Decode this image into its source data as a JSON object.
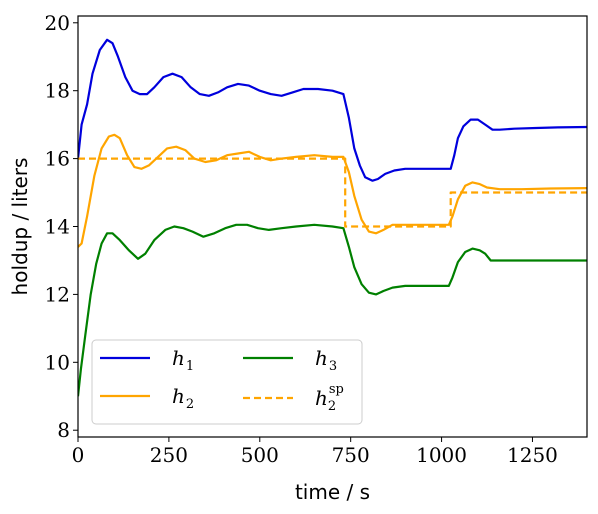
{
  "chart_data": {
    "type": "line",
    "title": "",
    "xlabel": "time / s",
    "ylabel": "holdup / liters",
    "xlim": [
      0,
      1400
    ],
    "ylim": [
      7.8,
      20.2
    ],
    "xticks": [
      0,
      250,
      500,
      750,
      1000,
      1250
    ],
    "yticks": [
      8,
      10,
      12,
      14,
      16,
      18,
      20
    ],
    "grid": false,
    "legend": {
      "placement": "bottom-left",
      "columns": 2,
      "entries": [
        {
          "base": "h",
          "sub": "1",
          "sup": ""
        },
        {
          "base": "h",
          "sub": "2",
          "sup": ""
        },
        {
          "base": "h",
          "sub": "3",
          "sup": ""
        },
        {
          "base": "h",
          "sub": "2",
          "sup": "sp"
        }
      ]
    },
    "series": [
      {
        "name": "h1",
        "color": "#0000dd",
        "style": "solid",
        "points": [
          [
            0,
            16.0
          ],
          [
            10,
            17.0
          ],
          [
            25,
            17.6
          ],
          [
            40,
            18.5
          ],
          [
            60,
            19.2
          ],
          [
            80,
            19.5
          ],
          [
            95,
            19.4
          ],
          [
            110,
            19.0
          ],
          [
            130,
            18.4
          ],
          [
            150,
            18.0
          ],
          [
            170,
            17.9
          ],
          [
            190,
            17.9
          ],
          [
            210,
            18.1
          ],
          [
            235,
            18.4
          ],
          [
            260,
            18.5
          ],
          [
            285,
            18.4
          ],
          [
            310,
            18.1
          ],
          [
            335,
            17.9
          ],
          [
            360,
            17.85
          ],
          [
            385,
            17.95
          ],
          [
            410,
            18.1
          ],
          [
            440,
            18.2
          ],
          [
            470,
            18.15
          ],
          [
            500,
            18.0
          ],
          [
            530,
            17.9
          ],
          [
            560,
            17.85
          ],
          [
            590,
            17.95
          ],
          [
            620,
            18.05
          ],
          [
            660,
            18.05
          ],
          [
            700,
            18.0
          ],
          [
            730,
            17.9
          ],
          [
            745,
            17.2
          ],
          [
            760,
            16.3
          ],
          [
            775,
            15.8
          ],
          [
            790,
            15.45
          ],
          [
            810,
            15.35
          ],
          [
            825,
            15.4
          ],
          [
            845,
            15.55
          ],
          [
            870,
            15.65
          ],
          [
            900,
            15.7
          ],
          [
            960,
            15.7
          ],
          [
            1025,
            15.7
          ],
          [
            1035,
            16.1
          ],
          [
            1045,
            16.6
          ],
          [
            1060,
            16.95
          ],
          [
            1080,
            17.15
          ],
          [
            1100,
            17.15
          ],
          [
            1120,
            17.0
          ],
          [
            1140,
            16.85
          ],
          [
            1160,
            16.85
          ],
          [
            1200,
            16.88
          ],
          [
            1260,
            16.9
          ],
          [
            1320,
            16.92
          ],
          [
            1400,
            16.93
          ]
        ]
      },
      {
        "name": "h2",
        "color": "#ffa500",
        "style": "solid",
        "points": [
          [
            0,
            13.4
          ],
          [
            10,
            13.5
          ],
          [
            25,
            14.3
          ],
          [
            45,
            15.5
          ],
          [
            65,
            16.3
          ],
          [
            85,
            16.65
          ],
          [
            100,
            16.7
          ],
          [
            115,
            16.6
          ],
          [
            135,
            16.1
          ],
          [
            155,
            15.75
          ],
          [
            175,
            15.7
          ],
          [
            195,
            15.8
          ],
          [
            220,
            16.05
          ],
          [
            245,
            16.3
          ],
          [
            270,
            16.35
          ],
          [
            295,
            16.25
          ],
          [
            320,
            16.0
          ],
          [
            350,
            15.9
          ],
          [
            380,
            15.95
          ],
          [
            410,
            16.1
          ],
          [
            440,
            16.15
          ],
          [
            470,
            16.2
          ],
          [
            500,
            16.05
          ],
          [
            530,
            15.95
          ],
          [
            560,
            16.0
          ],
          [
            600,
            16.05
          ],
          [
            650,
            16.1
          ],
          [
            700,
            16.05
          ],
          [
            730,
            16.05
          ],
          [
            745,
            15.6
          ],
          [
            760,
            14.9
          ],
          [
            780,
            14.2
          ],
          [
            800,
            13.85
          ],
          [
            820,
            13.8
          ],
          [
            840,
            13.9
          ],
          [
            865,
            14.05
          ],
          [
            900,
            14.05
          ],
          [
            960,
            14.05
          ],
          [
            1020,
            14.05
          ],
          [
            1030,
            14.3
          ],
          [
            1045,
            14.8
          ],
          [
            1065,
            15.2
          ],
          [
            1085,
            15.3
          ],
          [
            1105,
            15.25
          ],
          [
            1125,
            15.15
          ],
          [
            1160,
            15.1
          ],
          [
            1220,
            15.1
          ],
          [
            1300,
            15.12
          ],
          [
            1400,
            15.13
          ]
        ]
      },
      {
        "name": "h3",
        "color": "#008000",
        "style": "solid",
        "points": [
          [
            0,
            9.0
          ],
          [
            8,
            9.8
          ],
          [
            20,
            10.8
          ],
          [
            35,
            12.0
          ],
          [
            50,
            12.9
          ],
          [
            65,
            13.5
          ],
          [
            80,
            13.8
          ],
          [
            95,
            13.8
          ],
          [
            115,
            13.6
          ],
          [
            140,
            13.3
          ],
          [
            165,
            13.05
          ],
          [
            185,
            13.2
          ],
          [
            210,
            13.6
          ],
          [
            240,
            13.9
          ],
          [
            265,
            14.0
          ],
          [
            290,
            13.95
          ],
          [
            315,
            13.85
          ],
          [
            345,
            13.7
          ],
          [
            375,
            13.8
          ],
          [
            405,
            13.95
          ],
          [
            435,
            14.05
          ],
          [
            465,
            14.05
          ],
          [
            495,
            13.95
          ],
          [
            525,
            13.9
          ],
          [
            560,
            13.95
          ],
          [
            600,
            14.0
          ],
          [
            650,
            14.05
          ],
          [
            700,
            14.0
          ],
          [
            730,
            13.95
          ],
          [
            745,
            13.4
          ],
          [
            760,
            12.8
          ],
          [
            780,
            12.3
          ],
          [
            800,
            12.05
          ],
          [
            820,
            12.0
          ],
          [
            840,
            12.1
          ],
          [
            865,
            12.2
          ],
          [
            900,
            12.25
          ],
          [
            960,
            12.25
          ],
          [
            1020,
            12.25
          ],
          [
            1030,
            12.5
          ],
          [
            1045,
            12.95
          ],
          [
            1065,
            13.25
          ],
          [
            1085,
            13.35
          ],
          [
            1105,
            13.3
          ],
          [
            1120,
            13.2
          ],
          [
            1135,
            13.0
          ],
          [
            1200,
            13.0
          ],
          [
            1300,
            13.0
          ],
          [
            1400,
            13.0
          ]
        ]
      },
      {
        "name": "h2sp",
        "color": "#ffa500",
        "style": "dashed",
        "points": [
          [
            0,
            16.0
          ],
          [
            735,
            16.0
          ],
          [
            735,
            14.0
          ],
          [
            1025,
            14.0
          ],
          [
            1025,
            15.0
          ],
          [
            1400,
            15.0
          ]
        ]
      }
    ]
  }
}
